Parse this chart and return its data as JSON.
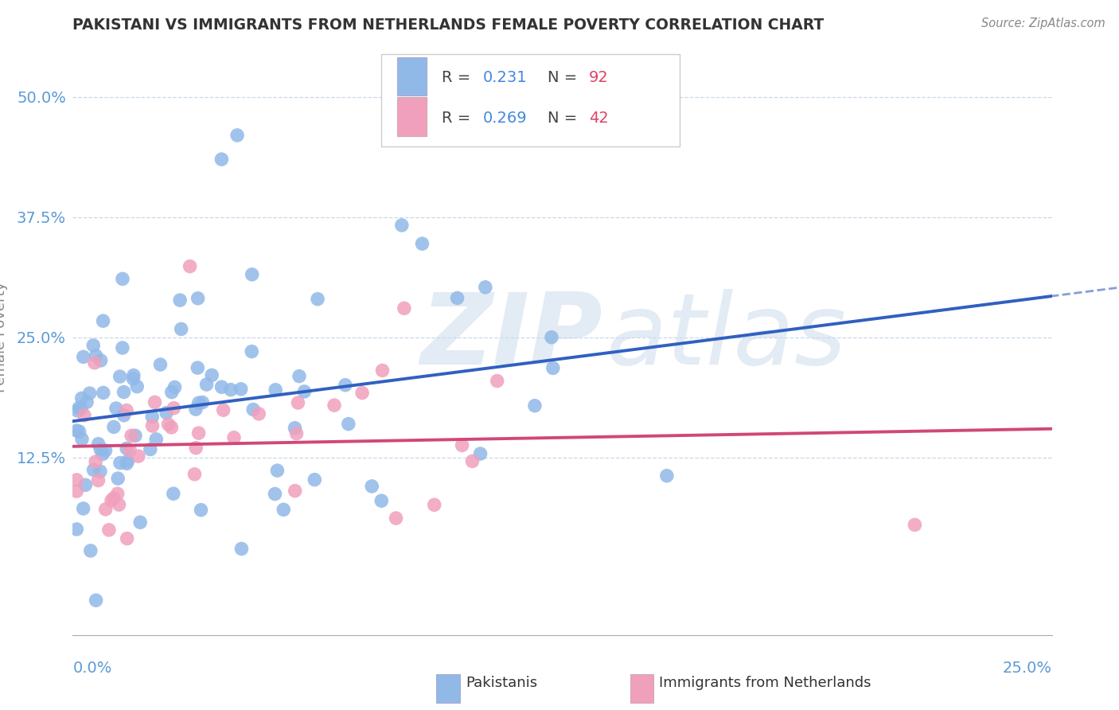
{
  "title": "PAKISTANI VS IMMIGRANTS FROM NETHERLANDS FEMALE POVERTY CORRELATION CHART",
  "source": "Source: ZipAtlas.com",
  "ylabel": "Female Poverty",
  "ytick_labels": [
    "12.5%",
    "25.0%",
    "37.5%",
    "50.0%"
  ],
  "ytick_values": [
    0.125,
    0.25,
    0.375,
    0.5
  ],
  "xlim": [
    0.0,
    0.25
  ],
  "ylim": [
    -0.06,
    0.56
  ],
  "legend1_R": "0.231",
  "legend1_N": "92",
  "legend2_R": "0.269",
  "legend2_N": "42",
  "blue_scatter_color": "#91b9e8",
  "pink_scatter_color": "#f0a0bc",
  "blue_line_color": "#3060c0",
  "pink_line_color": "#d04878",
  "seed": 42,
  "n_pak": 92,
  "n_net": 42,
  "R_pak": 0.231,
  "R_net": 0.269
}
